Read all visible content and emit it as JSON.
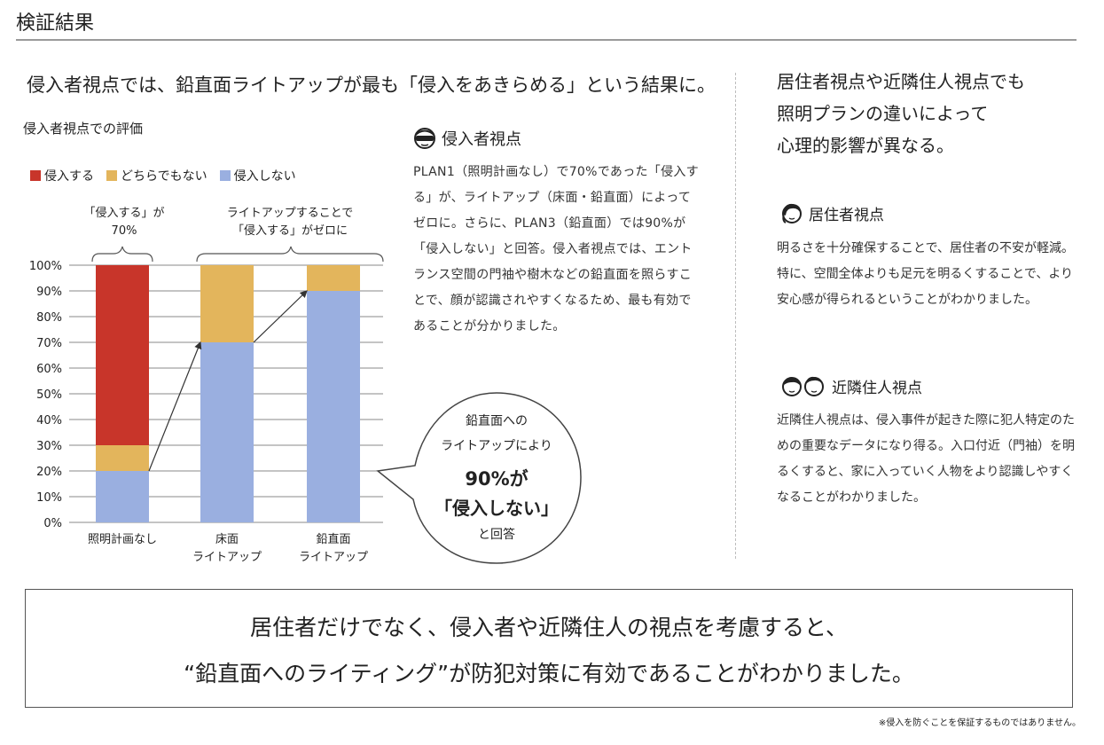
{
  "section_title": "検証結果",
  "headline": "侵入者視点では、鉛直面ライトアップが最も「侵入をあきらめる」という結果に。",
  "eval_title": "侵入者視点での評価",
  "colors": {
    "invade": "#c8352a",
    "neutral": "#e3b55c",
    "no_invade": "#9aafe0"
  },
  "annotations": {
    "brace_left_line1": "「侵入する」が",
    "brace_left_line2": "70%",
    "brace_right_line1": "ライトアップすることで",
    "brace_right_line2": "「侵入する」がゼロに"
  },
  "bubble": {
    "line1": "鉛直面への",
    "line2": "ライトアップにより",
    "line3": "90%が",
    "line4": "「侵入しない」",
    "line5": "と回答"
  },
  "chart_data": {
    "type": "bar",
    "stacked": true,
    "title": "侵入者視点での評価",
    "categories": [
      [
        "照明計画なし"
      ],
      [
        "床面",
        "ライトアップ"
      ],
      [
        "鉛直面",
        "ライトアップ"
      ]
    ],
    "series": [
      {
        "name": "侵入しない",
        "color": "#9aafe0",
        "values": [
          20,
          70,
          90
        ]
      },
      {
        "name": "どちらでもない",
        "color": "#e3b55c",
        "values": [
          10,
          30,
          10
        ]
      },
      {
        "name": "侵入する",
        "color": "#c8352a",
        "values": [
          70,
          0,
          0
        ]
      }
    ],
    "legend_order": [
      "侵入する",
      "どちらでもない",
      "侵入しない"
    ],
    "ylim": [
      0,
      100
    ],
    "yticks": [
      "0%",
      "10%",
      "20%",
      "30%",
      "40%",
      "50%",
      "60%",
      "70%",
      "80%",
      "90%",
      "100%"
    ],
    "grid": true,
    "legend_position": "top-left"
  },
  "intruder": {
    "title": "侵入者視点",
    "body": "PLAN1（照明計画なし）で70%であった「侵入する」が、ライトアップ（床面・鉛直面）によってゼロに。さらに、PLAN3（鉛直面）では90%が「侵入しない」と回答。侵入者視点では、エントランス空間の門袖や樹木などの鉛直面を照らすことで、顔が認識されやすくなるため、最も有効であることが分かりました。"
  },
  "right_heading": {
    "line1": "居住者視点や近隣住人視点でも",
    "line2": "照明プランの違いによって",
    "line3": "心理的影響が異なる。"
  },
  "resident": {
    "title": "居住者視点",
    "body": "明るさを十分確保することで、居住者の不安が軽減。特に、空間全体よりも足元を明るくすることで、より安心感が得られるということがわかりました。"
  },
  "neighbor": {
    "title": "近隣住人視点",
    "body": "近隣住人視点は、侵入事件が起きた際に犯人特定のための重要なデータになり得る。入口付近（門袖）を明るくすると、家に入っていく人物をより認識しやすくなることがわかりました。"
  },
  "conclusion": {
    "line1": "居住者だけでなく、侵入者や近隣住人の視点を考慮すると、",
    "line2": "“鉛直面へのライティング”が防犯対策に有効であることがわかりました。"
  },
  "footnote": "※侵入を防ぐことを保証するものではありません。"
}
